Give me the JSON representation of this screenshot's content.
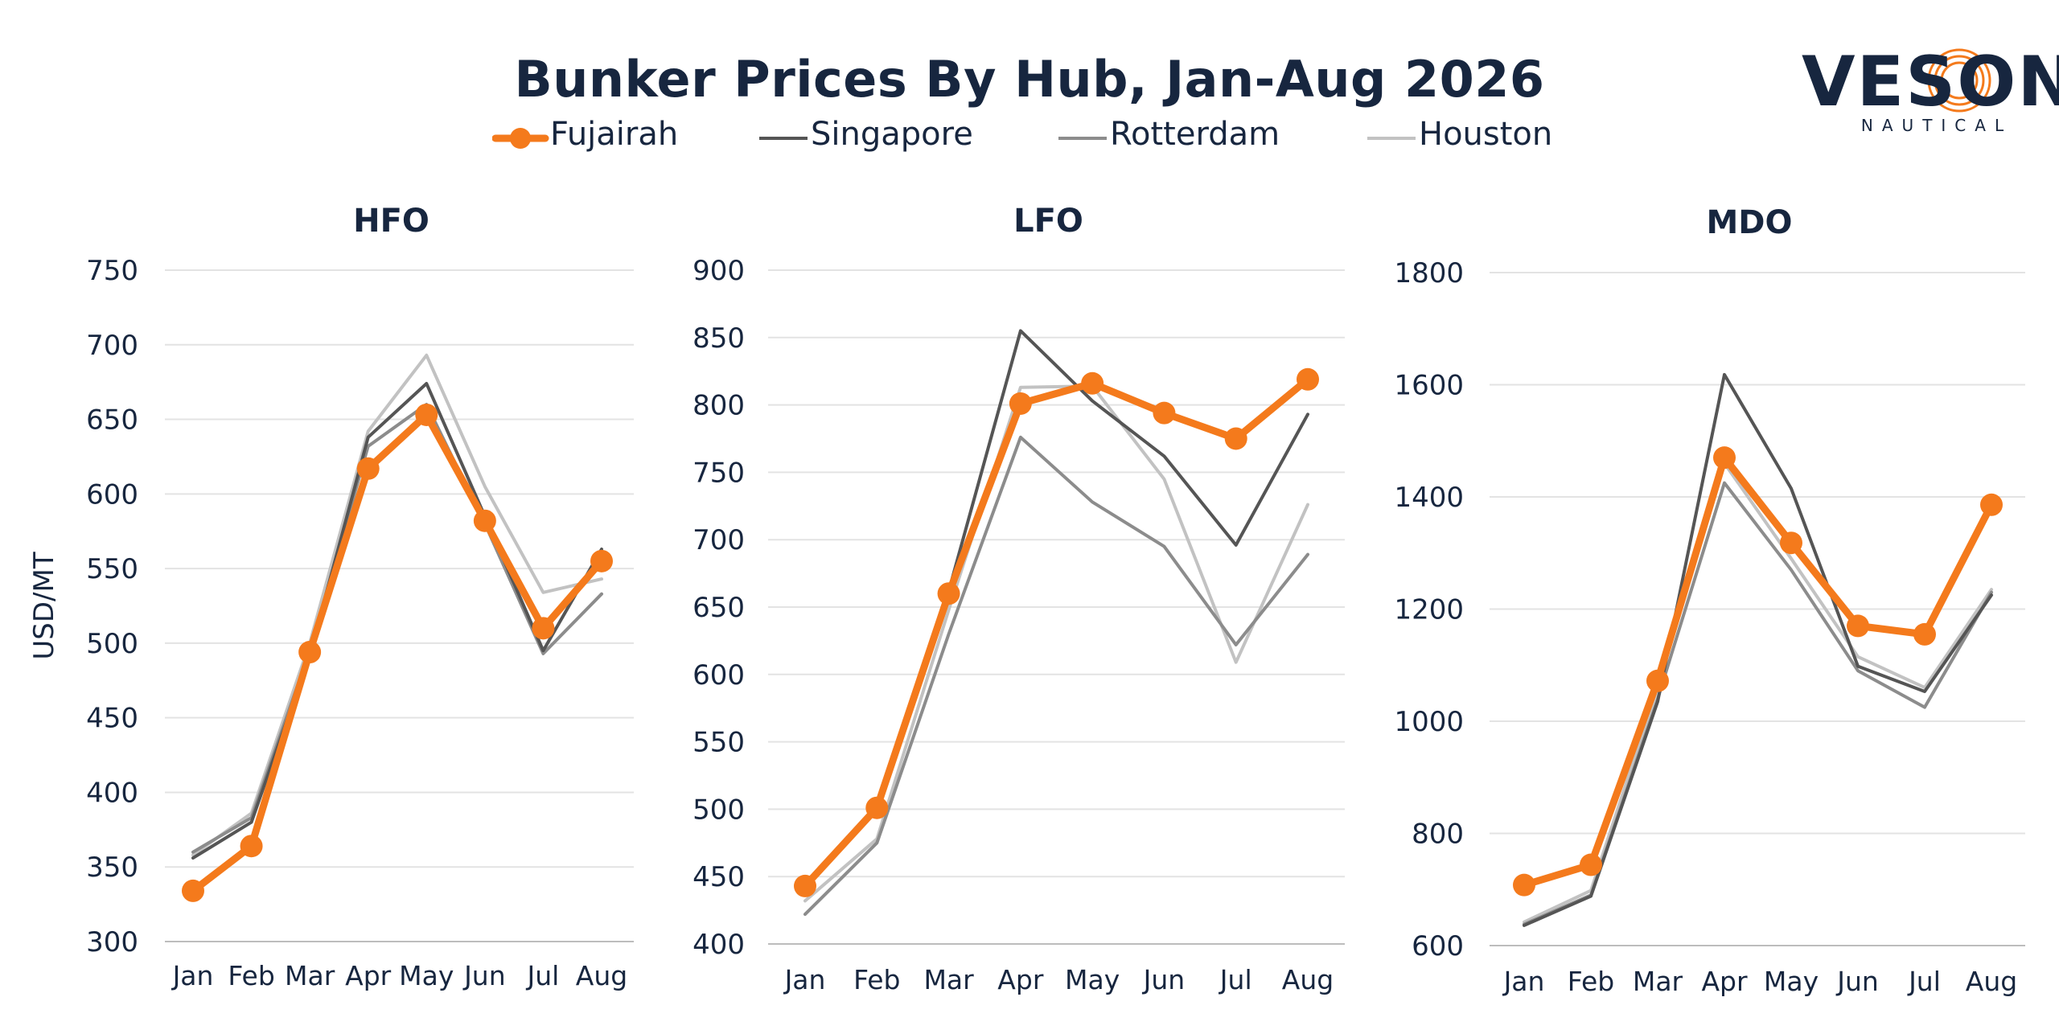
{
  "title": "Bunker Prices By Hub, Jan-Aug 2026",
  "logo": {
    "word": "VESON",
    "sub": "NAUTICAL"
  },
  "colors": {
    "Fujairah": "#f47a1c",
    "Singapore": "#555555",
    "Rotterdam": "#8c8c8c",
    "Houston": "#c2c2c2",
    "grid": "#e3e3e3",
    "text": "#17263f"
  },
  "legend": [
    "Fujairah",
    "Singapore",
    "Rotterdam",
    "Houston"
  ],
  "chart_data": [
    {
      "type": "line",
      "title": "HFO",
      "ylabel": "USD/MT",
      "categories": [
        "Jan",
        "Feb",
        "Mar",
        "Apr",
        "May",
        "Jun",
        "Jul",
        "Aug"
      ],
      "ylim": [
        300,
        750
      ],
      "yticks": [
        300,
        350,
        400,
        450,
        500,
        550,
        600,
        650,
        700,
        750
      ],
      "series": [
        {
          "name": "Fujairah",
          "values": [
            334,
            364,
            494,
            617,
            653,
            582,
            510,
            555
          ]
        },
        {
          "name": "Singapore",
          "values": [
            356,
            380,
            492,
            638,
            674,
            585,
            495,
            563
          ]
        },
        {
          "name": "Rotterdam",
          "values": [
            360,
            383,
            495,
            632,
            660,
            580,
            493,
            533
          ]
        },
        {
          "name": "Houston",
          "values": [
            358,
            386,
            500,
            642,
            693,
            605,
            534,
            543
          ]
        }
      ]
    },
    {
      "type": "line",
      "title": "LFO",
      "ylabel": "",
      "categories": [
        "Jan",
        "Feb",
        "Mar",
        "Apr",
        "May",
        "Jun",
        "Jul",
        "Aug"
      ],
      "ylim": [
        400,
        900
      ],
      "yticks": [
        400,
        450,
        500,
        550,
        600,
        650,
        700,
        750,
        800,
        850,
        900
      ],
      "series": [
        {
          "name": "Fujairah",
          "values": [
            443,
            501,
            660,
            801,
            816,
            794,
            775,
            819
          ]
        },
        {
          "name": "Singapore",
          "values": [
            445,
            503,
            662,
            855,
            803,
            762,
            696,
            793
          ]
        },
        {
          "name": "Rotterdam",
          "values": [
            422,
            475,
            630,
            776,
            728,
            695,
            622,
            689
          ]
        },
        {
          "name": "Houston",
          "values": [
            432,
            478,
            648,
            813,
            814,
            745,
            609,
            726
          ]
        }
      ]
    },
    {
      "type": "line",
      "title": "MDO",
      "ylabel": "",
      "categories": [
        "Jan",
        "Feb",
        "Mar",
        "Apr",
        "May",
        "Jun",
        "Jul",
        "Aug"
      ],
      "ylim": [
        600,
        1800
      ],
      "yticks": [
        600,
        800,
        1000,
        1200,
        1400,
        1600,
        1800
      ],
      "series": [
        {
          "name": "Fujairah",
          "values": [
            708,
            744,
            1072,
            1470,
            1318,
            1170,
            1155,
            1386
          ]
        },
        {
          "name": "Singapore",
          "values": [
            636,
            688,
            1035,
            1618,
            1415,
            1098,
            1053,
            1225
          ]
        },
        {
          "name": "Rotterdam",
          "values": [
            638,
            690,
            1040,
            1425,
            1270,
            1090,
            1025,
            1230
          ]
        },
        {
          "name": "Houston",
          "values": [
            642,
            698,
            1060,
            1460,
            1290,
            1115,
            1060,
            1235
          ]
        }
      ]
    }
  ]
}
